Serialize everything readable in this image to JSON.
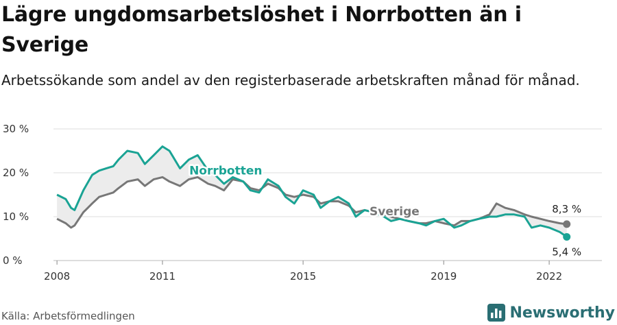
{
  "title": "Lägre ungdomsarbetslöshet i Norrbotten än i Sverige",
  "subtitle": "Arbetssökande som andel av den registerbaserade arbetskraften månad för månad.",
  "source": "Källa: Arbetsförmedlingen",
  "brand": "Newsworthy",
  "colors": {
    "norrbotten": "#1aa394",
    "sverige": "#777777",
    "area": "#ececec",
    "grid": "#dddddd",
    "brand": "#2a6e73"
  },
  "chart_data": {
    "type": "line",
    "ylim": [
      0,
      30
    ],
    "xlim": [
      2007.9,
      2023.5
    ],
    "y_ticks": [
      0,
      10,
      20,
      30
    ],
    "y_tick_labels": [
      "0 %",
      "10 %",
      "20 %",
      "30 %"
    ],
    "x_ticks": [
      2008,
      2011,
      2015,
      2019,
      2022
    ],
    "x_tick_labels": [
      "2008",
      "2011",
      "2015",
      "2019",
      "2022"
    ],
    "grid": true,
    "series": [
      {
        "name": "Norrbotten",
        "end_label": "5,4 %",
        "x": [
          2008.0,
          2008.25,
          2008.4,
          2008.5,
          2008.75,
          2009.0,
          2009.2,
          2009.4,
          2009.6,
          2009.75,
          2010.0,
          2010.3,
          2010.5,
          2010.75,
          2011.0,
          2011.2,
          2011.5,
          2011.75,
          2012.0,
          2012.3,
          2012.5,
          2012.75,
          2013.0,
          2013.3,
          2013.5,
          2013.75,
          2014.0,
          2014.3,
          2014.5,
          2014.75,
          2015.0,
          2015.3,
          2015.5,
          2015.75,
          2016.0,
          2016.3,
          2016.5,
          2016.75,
          2017.0,
          2017.3,
          2017.5,
          2017.75,
          2018.0,
          2018.3,
          2018.5,
          2018.75,
          2019.0,
          2019.3,
          2019.5,
          2019.75,
          2020.0,
          2020.3,
          2020.5,
          2020.75,
          2021.0,
          2021.3,
          2021.5,
          2021.75,
          2022.0,
          2022.3,
          2022.5
        ],
        "values": [
          15.0,
          14.0,
          12.0,
          11.5,
          16.0,
          19.5,
          20.5,
          21.0,
          21.5,
          23.0,
          25.0,
          24.5,
          22.0,
          24.0,
          26.0,
          25.0,
          21.0,
          23.0,
          24.0,
          20.5,
          19.5,
          17.5,
          19.0,
          18.0,
          16.0,
          15.5,
          18.5,
          17.0,
          14.5,
          13.0,
          16.0,
          15.0,
          12.0,
          13.5,
          14.5,
          13.0,
          10.0,
          11.5,
          11.0,
          10.0,
          9.0,
          9.5,
          9.0,
          8.5,
          8.0,
          9.0,
          9.5,
          7.5,
          8.0,
          9.0,
          9.5,
          10.0,
          10.0,
          10.5,
          10.5,
          10.0,
          7.5,
          8.0,
          7.5,
          6.5,
          5.4
        ]
      },
      {
        "name": "Sverige",
        "end_label": "8,3 %",
        "x": [
          2008.0,
          2008.25,
          2008.4,
          2008.5,
          2008.75,
          2009.0,
          2009.2,
          2009.4,
          2009.6,
          2009.75,
          2010.0,
          2010.3,
          2010.5,
          2010.75,
          2011.0,
          2011.2,
          2011.5,
          2011.75,
          2012.0,
          2012.3,
          2012.5,
          2012.75,
          2013.0,
          2013.3,
          2013.5,
          2013.75,
          2014.0,
          2014.3,
          2014.5,
          2014.75,
          2015.0,
          2015.3,
          2015.5,
          2015.75,
          2016.0,
          2016.3,
          2016.5,
          2016.75,
          2017.0,
          2017.3,
          2017.5,
          2017.75,
          2018.0,
          2018.3,
          2018.5,
          2018.75,
          2019.0,
          2019.3,
          2019.5,
          2019.75,
          2020.0,
          2020.3,
          2020.5,
          2020.75,
          2021.0,
          2021.3,
          2021.5,
          2021.75,
          2022.0,
          2022.3,
          2022.5
        ],
        "values": [
          9.5,
          8.5,
          7.5,
          8.0,
          11.0,
          13.0,
          14.5,
          15.0,
          15.5,
          16.5,
          18.0,
          18.5,
          17.0,
          18.5,
          19.0,
          18.0,
          17.0,
          18.5,
          19.0,
          17.5,
          17.0,
          16.0,
          18.5,
          18.0,
          16.5,
          16.0,
          17.5,
          16.5,
          15.0,
          14.5,
          15.0,
          14.5,
          13.0,
          13.5,
          13.5,
          12.5,
          11.0,
          11.5,
          11.0,
          10.5,
          10.0,
          9.5,
          9.0,
          8.5,
          8.5,
          9.0,
          8.5,
          8.0,
          9.0,
          9.0,
          9.5,
          10.5,
          13.0,
          12.0,
          11.5,
          10.5,
          10.0,
          9.5,
          9.0,
          8.5,
          8.3
        ]
      }
    ]
  }
}
